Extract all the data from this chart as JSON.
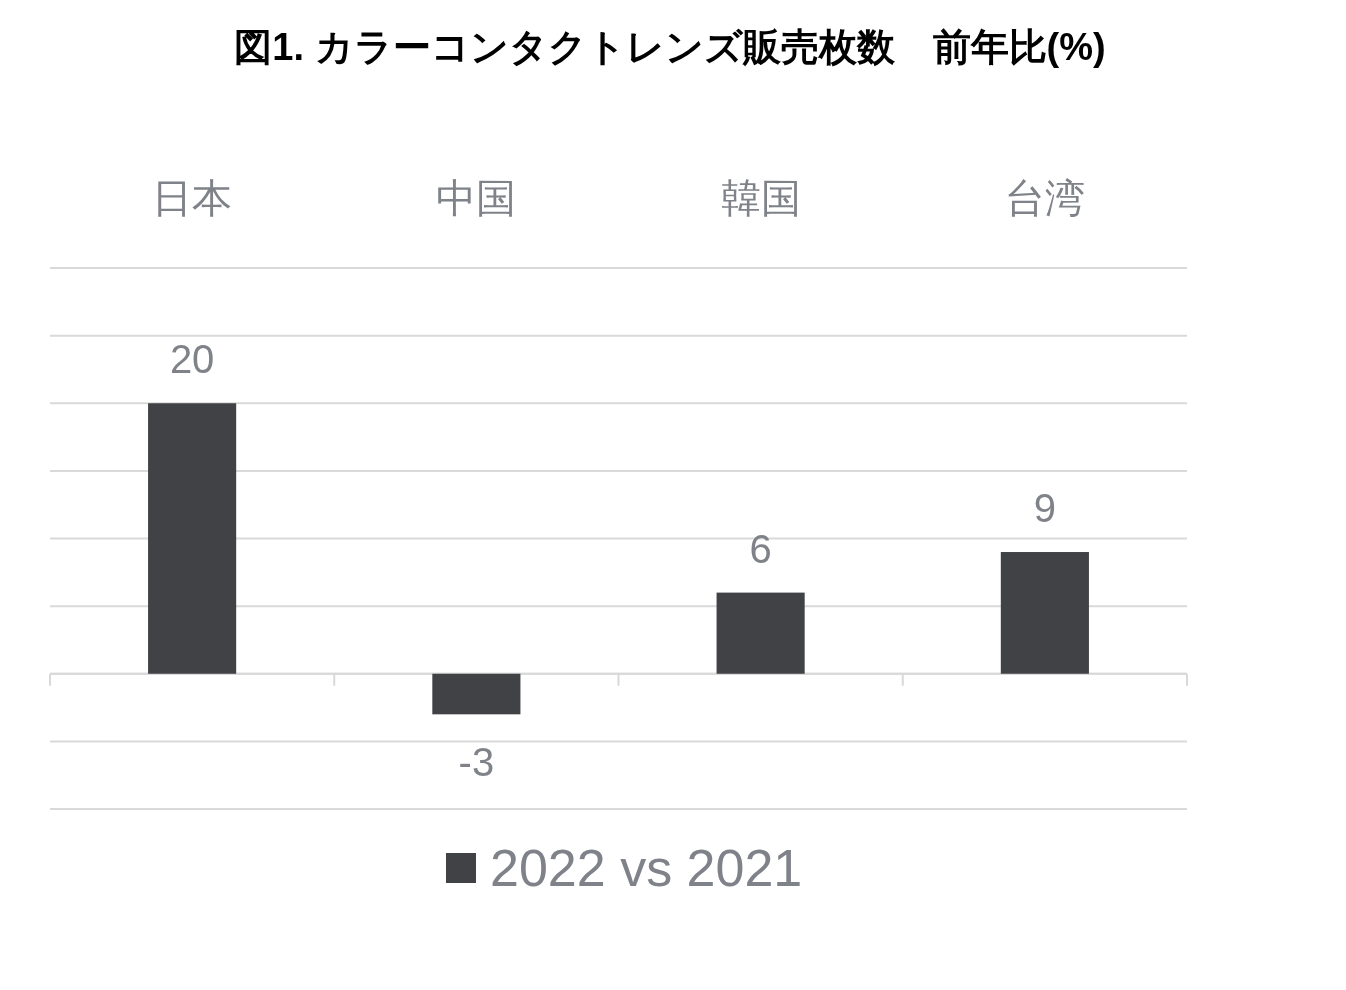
{
  "chart_data": {
    "type": "bar",
    "title": "図1. カラーコンタクトレンズ販売枚数　前年比(%)",
    "categories": [
      "日本",
      "中国",
      "韓国",
      "台湾"
    ],
    "series": [
      {
        "name": "2022 vs 2021",
        "color": "#404246",
        "values": [
          20,
          -3,
          6,
          9
        ]
      }
    ],
    "ylim": [
      -10,
      30
    ],
    "yticks": [
      {
        "value": -10,
        "label": null
      },
      {
        "value": -5,
        "label": null
      },
      {
        "value": 0,
        "label": null
      },
      {
        "value": 5,
        "label": null
      },
      {
        "value": 10,
        "label": null
      },
      {
        "value": 15,
        "label": null
      },
      {
        "value": 20,
        "label": null
      },
      {
        "value": 25,
        "label": null
      },
      {
        "value": 30,
        "label": null
      }
    ],
    "grid": "y",
    "legend": "bottom",
    "data_labels": true,
    "tick_labels": "x"
  }
}
